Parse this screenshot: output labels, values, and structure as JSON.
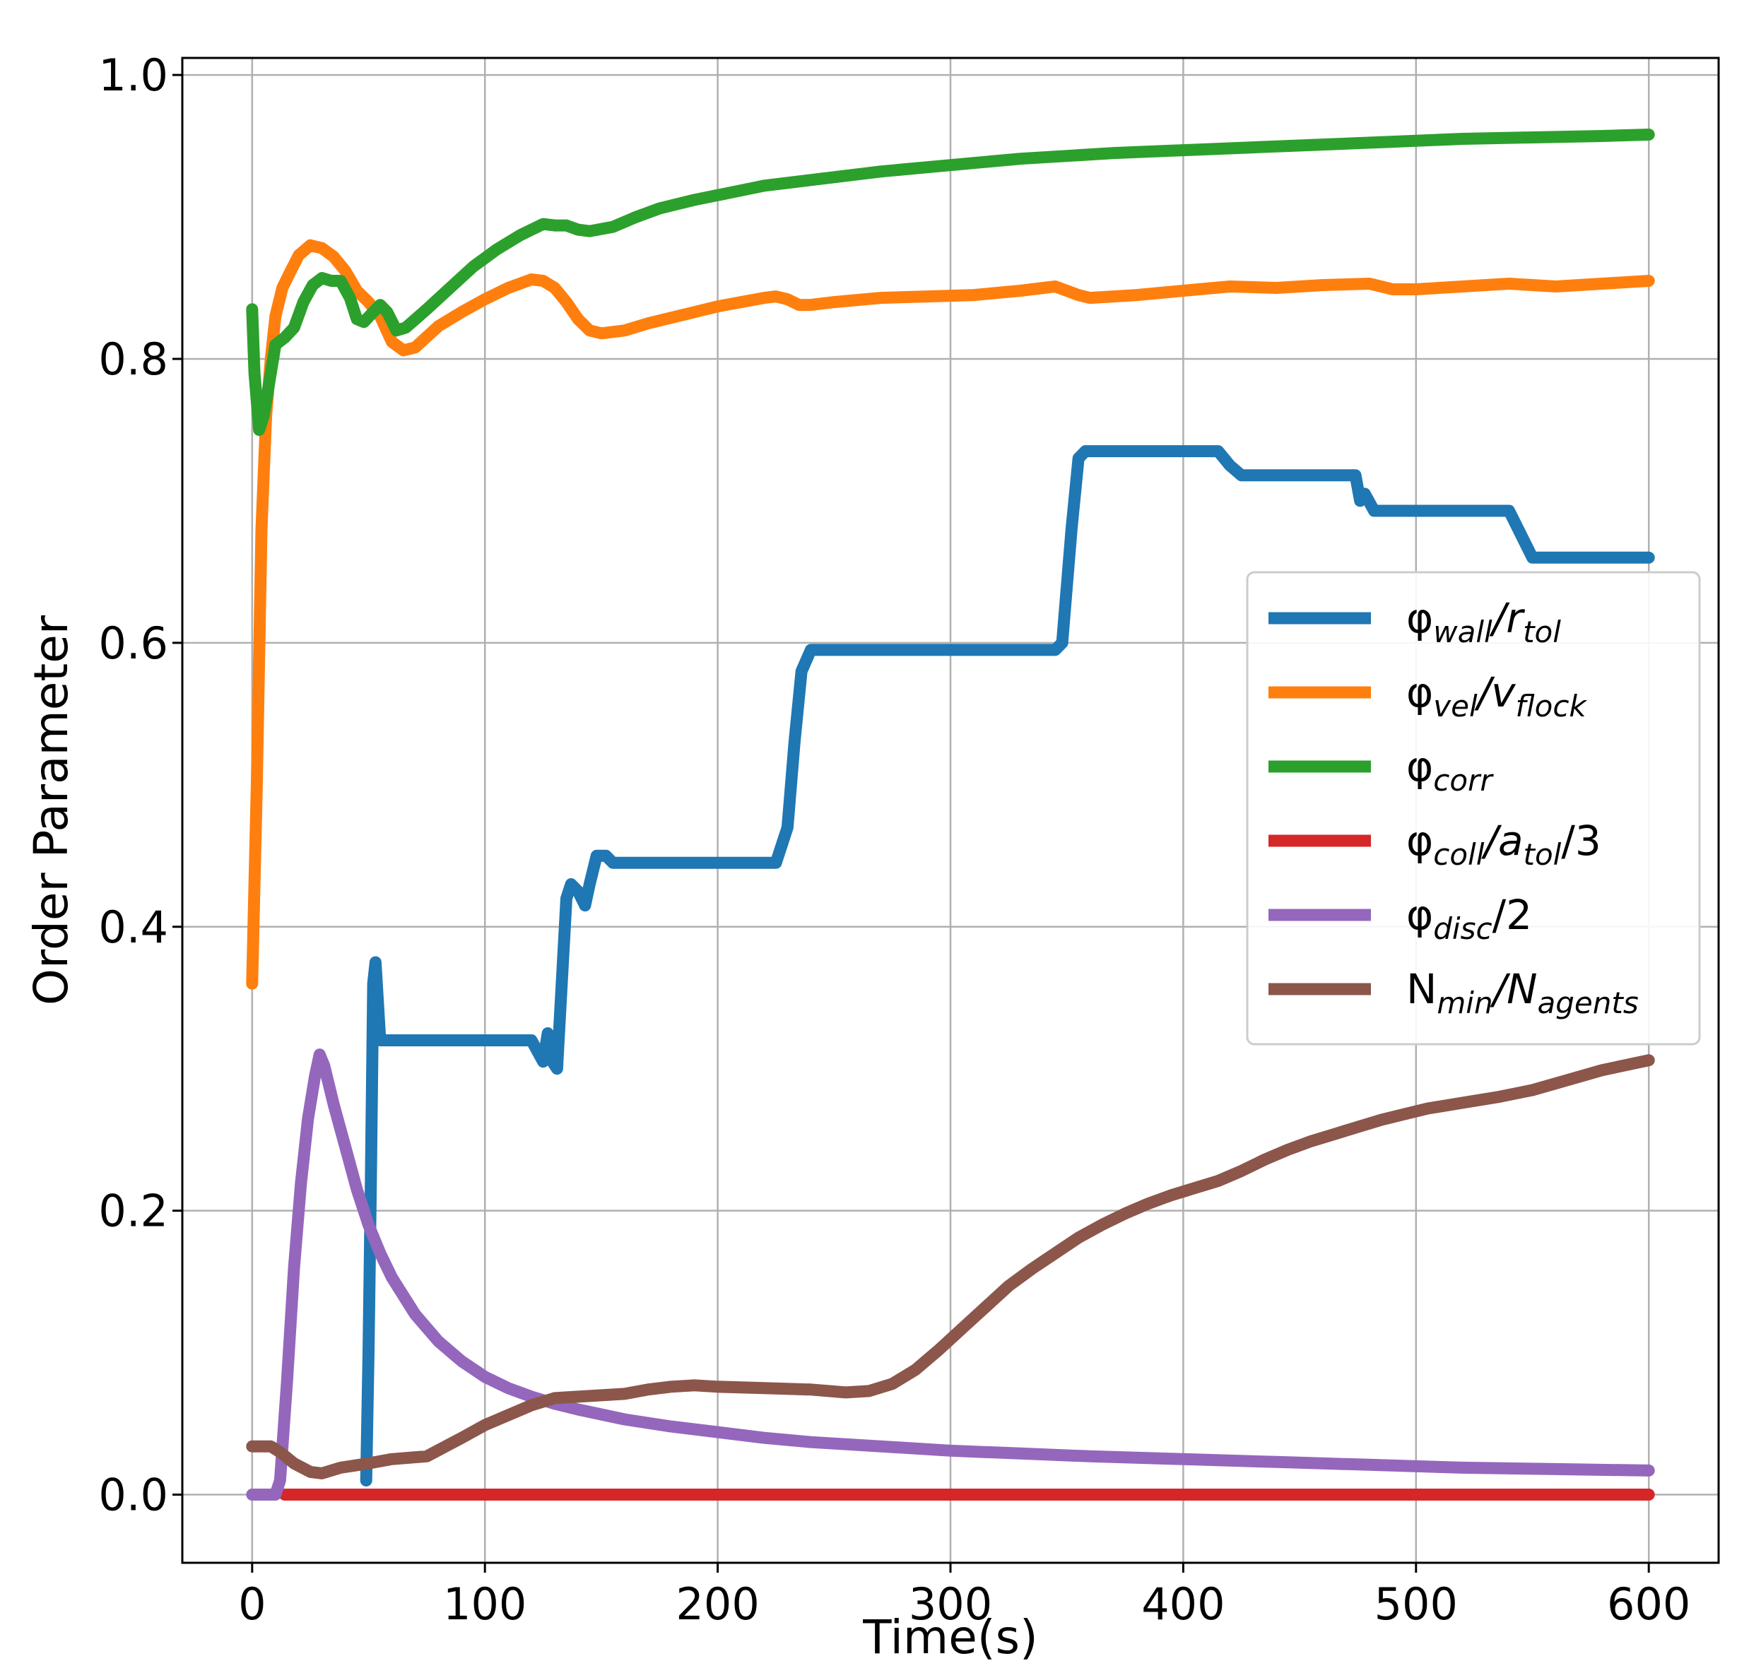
{
  "chart_data": {
    "type": "line",
    "title": "",
    "xlabel": "Time(s)",
    "ylabel": "Order Parameter",
    "xlim": [
      -30,
      630
    ],
    "ylim": [
      -0.048,
      1.012
    ],
    "xticks": [
      0,
      100,
      200,
      300,
      400,
      500,
      600
    ],
    "yticks": [
      0.0,
      0.2,
      0.4,
      0.6,
      0.8,
      1.0
    ],
    "xtick_labels": [
      "0",
      "100",
      "200",
      "300",
      "400",
      "500",
      "600"
    ],
    "ytick_labels": [
      "0.0",
      "0.2",
      "0.4",
      "0.6",
      "0.8",
      "1.0"
    ],
    "grid": true,
    "legend_position": "center-right",
    "series": [
      {
        "name": "phi_wall/r_tol",
        "legend": {
          "base": "φ",
          "sub": "wall",
          "mid": "/r",
          "sub2": "tol",
          "tail": ""
        },
        "color": "#1f77b4",
        "points": [
          [
            49,
            0.01
          ],
          [
            50,
            0.1
          ],
          [
            51,
            0.22
          ],
          [
            52,
            0.36
          ],
          [
            53,
            0.375
          ],
          [
            55,
            0.32
          ],
          [
            60,
            0.32
          ],
          [
            120,
            0.32
          ],
          [
            125,
            0.305
          ],
          [
            127,
            0.325
          ],
          [
            129,
            0.305
          ],
          [
            131,
            0.3
          ],
          [
            133,
            0.36
          ],
          [
            135,
            0.42
          ],
          [
            137,
            0.43
          ],
          [
            140,
            0.425
          ],
          [
            143,
            0.415
          ],
          [
            145,
            0.43
          ],
          [
            148,
            0.45
          ],
          [
            152,
            0.45
          ],
          [
            155,
            0.445
          ],
          [
            220,
            0.445
          ],
          [
            225,
            0.445
          ],
          [
            230,
            0.47
          ],
          [
            233,
            0.53
          ],
          [
            236,
            0.58
          ],
          [
            240,
            0.595
          ],
          [
            300,
            0.595
          ],
          [
            345,
            0.595
          ],
          [
            348,
            0.6
          ],
          [
            352,
            0.68
          ],
          [
            355,
            0.73
          ],
          [
            358,
            0.735
          ],
          [
            415,
            0.735
          ],
          [
            420,
            0.725
          ],
          [
            425,
            0.718
          ],
          [
            470,
            0.718
          ],
          [
            474,
            0.718
          ],
          [
            476,
            0.7
          ],
          [
            478,
            0.705
          ],
          [
            482,
            0.693
          ],
          [
            540,
            0.693
          ],
          [
            550,
            0.66
          ],
          [
            600,
            0.66
          ]
        ]
      },
      {
        "name": "phi_vel/v_flock",
        "legend": {
          "base": "φ",
          "sub": "vel",
          "mid": "/v",
          "sub2": "flock",
          "tail": ""
        },
        "color": "#ff7f0e",
        "points": [
          [
            0,
            0.36
          ],
          [
            2,
            0.5
          ],
          [
            4,
            0.68
          ],
          [
            6,
            0.76
          ],
          [
            8,
            0.8
          ],
          [
            10,
            0.83
          ],
          [
            13,
            0.85
          ],
          [
            16,
            0.86
          ],
          [
            20,
            0.873
          ],
          [
            25,
            0.88
          ],
          [
            30,
            0.878
          ],
          [
            35,
            0.872
          ],
          [
            40,
            0.862
          ],
          [
            45,
            0.848
          ],
          [
            50,
            0.84
          ],
          [
            55,
            0.83
          ],
          [
            60,
            0.812
          ],
          [
            65,
            0.806
          ],
          [
            70,
            0.808
          ],
          [
            80,
            0.823
          ],
          [
            90,
            0.833
          ],
          [
            100,
            0.842
          ],
          [
            110,
            0.85
          ],
          [
            120,
            0.856
          ],
          [
            125,
            0.855
          ],
          [
            130,
            0.85
          ],
          [
            135,
            0.84
          ],
          [
            140,
            0.828
          ],
          [
            145,
            0.82
          ],
          [
            150,
            0.818
          ],
          [
            160,
            0.82
          ],
          [
            170,
            0.825
          ],
          [
            180,
            0.829
          ],
          [
            190,
            0.833
          ],
          [
            200,
            0.837
          ],
          [
            210,
            0.84
          ],
          [
            220,
            0.843
          ],
          [
            225,
            0.844
          ],
          [
            230,
            0.842
          ],
          [
            235,
            0.838
          ],
          [
            240,
            0.838
          ],
          [
            250,
            0.84
          ],
          [
            270,
            0.843
          ],
          [
            290,
            0.844
          ],
          [
            310,
            0.845
          ],
          [
            330,
            0.848
          ],
          [
            345,
            0.851
          ],
          [
            355,
            0.845
          ],
          [
            360,
            0.843
          ],
          [
            380,
            0.845
          ],
          [
            400,
            0.848
          ],
          [
            420,
            0.851
          ],
          [
            440,
            0.85
          ],
          [
            460,
            0.852
          ],
          [
            480,
            0.853
          ],
          [
            490,
            0.849
          ],
          [
            500,
            0.849
          ],
          [
            520,
            0.851
          ],
          [
            540,
            0.853
          ],
          [
            560,
            0.851
          ],
          [
            580,
            0.853
          ],
          [
            600,
            0.855
          ]
        ]
      },
      {
        "name": "phi_corr",
        "legend": {
          "base": "φ",
          "sub": "corr",
          "mid": "",
          "sub2": "",
          "tail": ""
        },
        "color": "#2ca02c",
        "points": [
          [
            0,
            0.835
          ],
          [
            1,
            0.79
          ],
          [
            3,
            0.75
          ],
          [
            5,
            0.76
          ],
          [
            8,
            0.79
          ],
          [
            10,
            0.81
          ],
          [
            14,
            0.815
          ],
          [
            18,
            0.822
          ],
          [
            22,
            0.84
          ],
          [
            26,
            0.852
          ],
          [
            30,
            0.857
          ],
          [
            34,
            0.855
          ],
          [
            38,
            0.855
          ],
          [
            42,
            0.843
          ],
          [
            45,
            0.828
          ],
          [
            48,
            0.826
          ],
          [
            52,
            0.833
          ],
          [
            55,
            0.838
          ],
          [
            58,
            0.833
          ],
          [
            62,
            0.82
          ],
          [
            66,
            0.822
          ],
          [
            75,
            0.835
          ],
          [
            85,
            0.85
          ],
          [
            95,
            0.865
          ],
          [
            105,
            0.877
          ],
          [
            115,
            0.887
          ],
          [
            125,
            0.895
          ],
          [
            130,
            0.894
          ],
          [
            135,
            0.894
          ],
          [
            140,
            0.891
          ],
          [
            145,
            0.89
          ],
          [
            155,
            0.893
          ],
          [
            165,
            0.9
          ],
          [
            175,
            0.906
          ],
          [
            190,
            0.912
          ],
          [
            205,
            0.917
          ],
          [
            220,
            0.922
          ],
          [
            235,
            0.925
          ],
          [
            250,
            0.928
          ],
          [
            270,
            0.932
          ],
          [
            290,
            0.935
          ],
          [
            310,
            0.938
          ],
          [
            330,
            0.941
          ],
          [
            350,
            0.943
          ],
          [
            370,
            0.945
          ],
          [
            400,
            0.947
          ],
          [
            430,
            0.949
          ],
          [
            460,
            0.951
          ],
          [
            490,
            0.953
          ],
          [
            520,
            0.955
          ],
          [
            550,
            0.956
          ],
          [
            580,
            0.957
          ],
          [
            600,
            0.958
          ]
        ]
      },
      {
        "name": "phi_coll/a_tol/3",
        "legend": {
          "base": "φ",
          "sub": "coll",
          "mid": "/a",
          "sub2": "tol",
          "tail": "/3"
        },
        "color": "#d62728",
        "points": [
          [
            14,
            0.0
          ],
          [
            600,
            0.0
          ]
        ]
      },
      {
        "name": "phi_disc/2",
        "legend": {
          "base": "φ",
          "sub": "disc",
          "mid": "",
          "sub2": "",
          "tail": "/2"
        },
        "color": "#9467bd",
        "points": [
          [
            0,
            0.0
          ],
          [
            10,
            0.0
          ],
          [
            12,
            0.01
          ],
          [
            15,
            0.08
          ],
          [
            18,
            0.16
          ],
          [
            21,
            0.22
          ],
          [
            24,
            0.265
          ],
          [
            27,
            0.295
          ],
          [
            29,
            0.31
          ],
          [
            31,
            0.302
          ],
          [
            35,
            0.275
          ],
          [
            40,
            0.245
          ],
          [
            45,
            0.215
          ],
          [
            50,
            0.19
          ],
          [
            55,
            0.17
          ],
          [
            60,
            0.153
          ],
          [
            70,
            0.127
          ],
          [
            80,
            0.108
          ],
          [
            90,
            0.094
          ],
          [
            100,
            0.083
          ],
          [
            110,
            0.075
          ],
          [
            120,
            0.069
          ],
          [
            130,
            0.064
          ],
          [
            140,
            0.06
          ],
          [
            160,
            0.053
          ],
          [
            180,
            0.048
          ],
          [
            200,
            0.044
          ],
          [
            220,
            0.04
          ],
          [
            240,
            0.037
          ],
          [
            260,
            0.035
          ],
          [
            280,
            0.033
          ],
          [
            300,
            0.031
          ],
          [
            330,
            0.029
          ],
          [
            360,
            0.027
          ],
          [
            400,
            0.025
          ],
          [
            440,
            0.023
          ],
          [
            480,
            0.021
          ],
          [
            520,
            0.019
          ],
          [
            560,
            0.018
          ],
          [
            600,
            0.017
          ]
        ]
      },
      {
        "name": "N_min/N_agents",
        "legend": {
          "base": "N",
          "sub": "min",
          "mid": "/N",
          "sub2": "agents",
          "tail": ""
        },
        "color": "#8c564b",
        "points": [
          [
            0,
            0.034
          ],
          [
            8,
            0.034
          ],
          [
            12,
            0.03
          ],
          [
            18,
            0.022
          ],
          [
            25,
            0.016
          ],
          [
            30,
            0.015
          ],
          [
            38,
            0.019
          ],
          [
            50,
            0.022
          ],
          [
            60,
            0.025
          ],
          [
            75,
            0.027
          ],
          [
            82,
            0.033
          ],
          [
            90,
            0.04
          ],
          [
            100,
            0.049
          ],
          [
            110,
            0.056
          ],
          [
            120,
            0.063
          ],
          [
            130,
            0.068
          ],
          [
            140,
            0.069
          ],
          [
            150,
            0.07
          ],
          [
            160,
            0.071
          ],
          [
            170,
            0.074
          ],
          [
            180,
            0.076
          ],
          [
            190,
            0.077
          ],
          [
            200,
            0.076
          ],
          [
            220,
            0.075
          ],
          [
            240,
            0.074
          ],
          [
            255,
            0.072
          ],
          [
            265,
            0.073
          ],
          [
            275,
            0.078
          ],
          [
            285,
            0.088
          ],
          [
            295,
            0.102
          ],
          [
            305,
            0.117
          ],
          [
            315,
            0.132
          ],
          [
            325,
            0.147
          ],
          [
            335,
            0.159
          ],
          [
            345,
            0.17
          ],
          [
            355,
            0.181
          ],
          [
            365,
            0.19
          ],
          [
            375,
            0.198
          ],
          [
            385,
            0.205
          ],
          [
            395,
            0.211
          ],
          [
            405,
            0.216
          ],
          [
            415,
            0.221
          ],
          [
            425,
            0.228
          ],
          [
            435,
            0.236
          ],
          [
            445,
            0.243
          ],
          [
            455,
            0.249
          ],
          [
            465,
            0.254
          ],
          [
            475,
            0.259
          ],
          [
            485,
            0.264
          ],
          [
            495,
            0.268
          ],
          [
            505,
            0.272
          ],
          [
            520,
            0.276
          ],
          [
            535,
            0.28
          ],
          [
            550,
            0.285
          ],
          [
            565,
            0.292
          ],
          [
            580,
            0.299
          ],
          [
            600,
            0.306
          ]
        ]
      }
    ]
  }
}
